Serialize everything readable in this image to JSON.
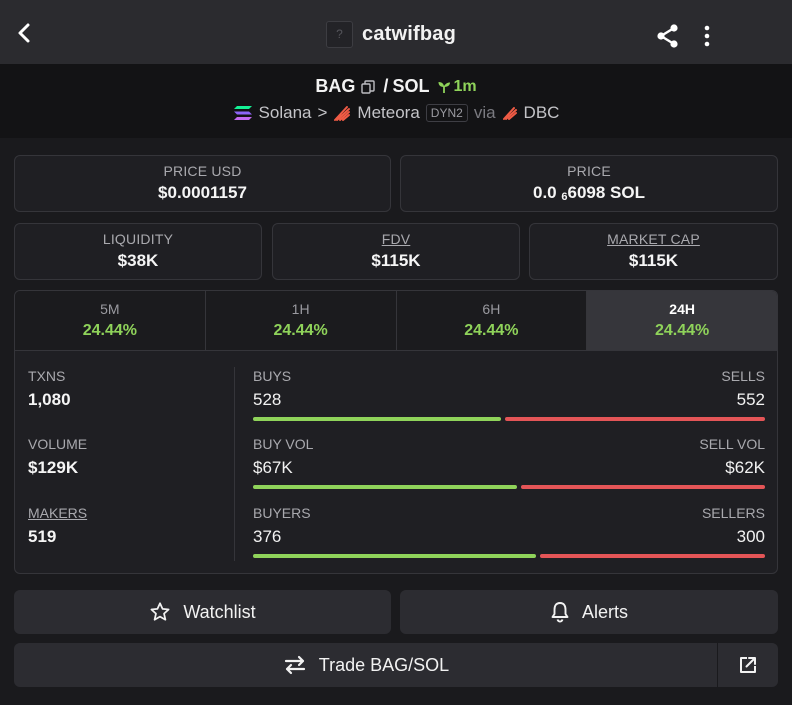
{
  "header": {
    "title": "catwifbag",
    "token_placeholder": "?"
  },
  "pair": {
    "base": "BAG",
    "separator": "/",
    "quote": "SOL",
    "age": "1m"
  },
  "route": {
    "chain": "Solana",
    "arrow": ">",
    "dex": "Meteora",
    "dex_tag": "DYN2",
    "via": "via",
    "launchpad": "DBC"
  },
  "price": {
    "usd_label": "PRICE USD",
    "usd_value": "$0.0001157",
    "native_label": "PRICE",
    "native_prefix": "0.0",
    "native_sub": "6",
    "native_rest": "6098 SOL"
  },
  "metrics": {
    "liquidity_label": "LIQUIDITY",
    "liquidity_value": "$38K",
    "fdv_label": "FDV",
    "fdv_value": "$115K",
    "mcap_label": "MARKET CAP",
    "mcap_value": "$115K"
  },
  "tabs": [
    {
      "label": "5M",
      "value": "24.44%"
    },
    {
      "label": "1H",
      "value": "24.44%"
    },
    {
      "label": "6H",
      "value": "24.44%"
    },
    {
      "label": "24H",
      "value": "24.44%"
    }
  ],
  "active_tab": "24H",
  "stats": {
    "txns_label": "TXNS",
    "txns_value": "1,080",
    "volume_label": "VOLUME",
    "volume_value": "$129K",
    "makers_label": "MAKERS",
    "makers_value": "519",
    "buys_label": "BUYS",
    "buys_value": "528",
    "sells_label": "SELLS",
    "sells_value": "552",
    "buy_vol_label": "BUY VOL",
    "buy_vol_value": "$67K",
    "sell_vol_label": "SELL VOL",
    "sell_vol_value": "$62K",
    "buyers_label": "BUYERS",
    "buyers_value": "376",
    "sellers_label": "SELLERS",
    "sellers_value": "300"
  },
  "ratios": {
    "buys_fraction": 0.489,
    "buy_vol_fraction": 0.519,
    "buyers_fraction": 0.556
  },
  "actions": {
    "watchlist": "Watchlist",
    "alerts": "Alerts",
    "trade": "Trade BAG/SOL"
  },
  "colors": {
    "positive": "#8fd35a",
    "negative": "#e45557",
    "background": "#1a1a1d",
    "panel": "#1f1f23"
  },
  "icons": [
    "back-chevron-icon",
    "share-icon",
    "more-vertical-icon",
    "copy-icon",
    "seedling-icon",
    "solana-logo-icon",
    "meteora-logo-icon",
    "dbc-logo-icon",
    "star-icon",
    "bell-icon",
    "swap-arrows-icon",
    "external-link-icon"
  ]
}
